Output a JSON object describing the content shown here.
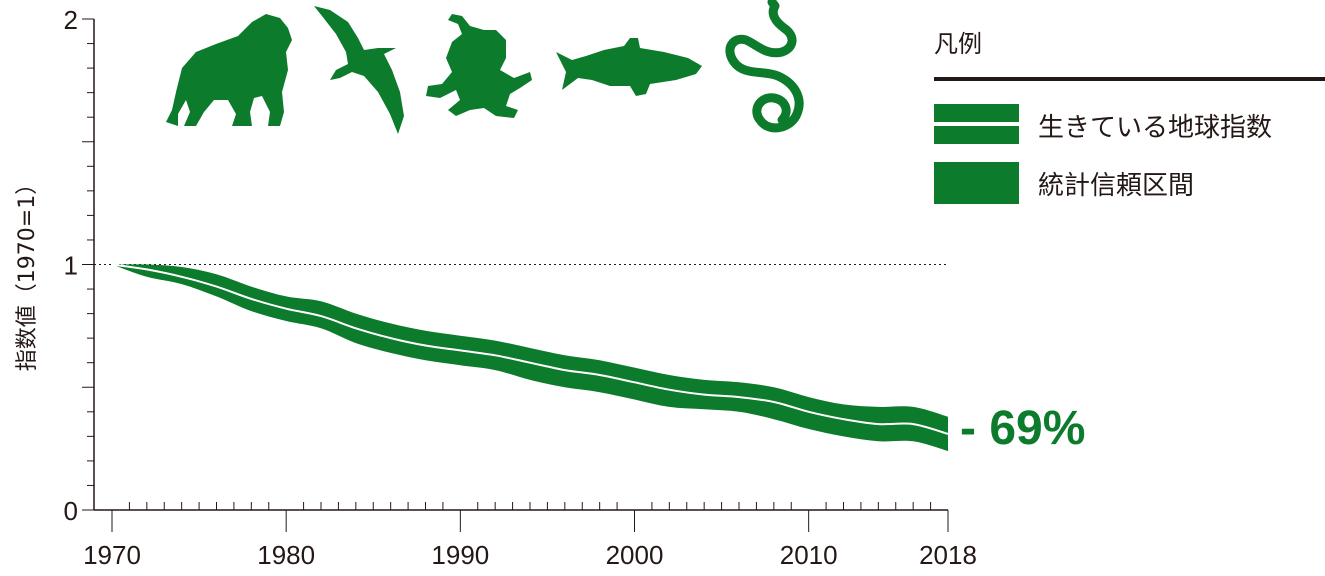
{
  "colors": {
    "band": "#0c7b2b",
    "line": "#ffffff",
    "axis": "#231815",
    "text": "#231815",
    "reference": "#231815"
  },
  "icons": [
    "gorilla-icon",
    "albatross-icon",
    "frog-icon",
    "fish-icon",
    "snake-icon"
  ],
  "legend": {
    "title": "凡例",
    "items": [
      {
        "label": "生きている地球指数",
        "style": "line-in-band"
      },
      {
        "label": "統計信頼区間",
        "style": "band"
      }
    ]
  },
  "chart_data": {
    "type": "area",
    "title": "",
    "xlabel": "",
    "ylabel": "指数値（1970=1）",
    "xlim": [
      1970,
      2018
    ],
    "ylim": [
      0,
      2
    ],
    "x_ticks": [
      1970,
      1980,
      1990,
      2000,
      2010,
      2018
    ],
    "y_ticks": [
      0,
      1,
      2
    ],
    "reference_line": {
      "y": 1,
      "style": "dotted"
    },
    "series": [
      {
        "name": "生きている地球指数",
        "x": [
          1970,
          1972,
          1974,
          1976,
          1978,
          1980,
          1982,
          1984,
          1986,
          1988,
          1990,
          1992,
          1994,
          1996,
          1998,
          2000,
          2002,
          2004,
          2006,
          2008,
          2010,
          2012,
          2014,
          2016,
          2018
        ],
        "values": [
          1.0,
          0.98,
          0.95,
          0.91,
          0.86,
          0.82,
          0.79,
          0.74,
          0.7,
          0.67,
          0.65,
          0.63,
          0.6,
          0.57,
          0.55,
          0.52,
          0.49,
          0.47,
          0.46,
          0.44,
          0.4,
          0.37,
          0.35,
          0.35,
          0.31
        ],
        "lower": [
          1.0,
          0.95,
          0.92,
          0.87,
          0.81,
          0.77,
          0.74,
          0.68,
          0.64,
          0.61,
          0.59,
          0.57,
          0.53,
          0.5,
          0.48,
          0.45,
          0.42,
          0.41,
          0.4,
          0.37,
          0.33,
          0.3,
          0.28,
          0.28,
          0.24
        ],
        "upper": [
          1.0,
          1.0,
          0.99,
          0.96,
          0.91,
          0.87,
          0.85,
          0.8,
          0.76,
          0.73,
          0.71,
          0.69,
          0.66,
          0.63,
          0.61,
          0.58,
          0.55,
          0.53,
          0.52,
          0.5,
          0.46,
          0.43,
          0.42,
          0.42,
          0.38
        ]
      }
    ],
    "annotation": "- 69%"
  }
}
